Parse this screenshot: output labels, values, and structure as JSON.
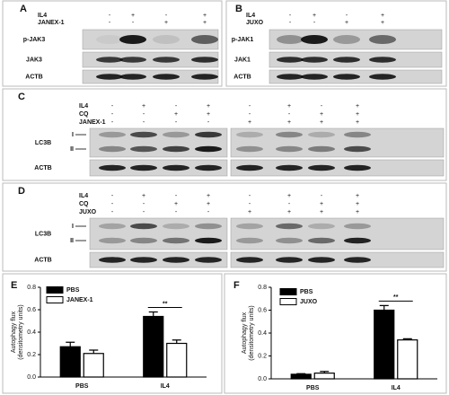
{
  "blot_panels": [
    {
      "label": "A",
      "conditions": [
        {
          "name": "IL4",
          "signs": [
            "-",
            "+",
            "-",
            "+"
          ]
        },
        {
          "name": "JANEX-1",
          "signs": [
            "-",
            "-",
            "+",
            "+"
          ]
        }
      ],
      "bands": [
        "p-JAK3",
        "JAK3",
        "ACTB"
      ]
    },
    {
      "label": "B",
      "conditions": [
        {
          "name": "IL4",
          "signs": [
            "-",
            "+",
            "-",
            "+"
          ]
        },
        {
          "name": "JUXO",
          "signs": [
            "-",
            "-",
            "+",
            "+"
          ]
        }
      ],
      "bands": [
        "p-JAK1",
        "JAK1",
        "ACTB"
      ]
    },
    {
      "label": "C",
      "conditions": [
        {
          "name": "IL4",
          "signs": [
            "-",
            "+",
            "-",
            "+",
            "-",
            "+",
            "-",
            "+"
          ]
        },
        {
          "name": "CQ",
          "signs": [
            "-",
            "-",
            "+",
            "+",
            "-",
            "-",
            "+",
            "+"
          ]
        },
        {
          "name": "JANEX-1",
          "signs": [
            "-",
            "-",
            "-",
            "-",
            "+",
            "+",
            "+",
            "+"
          ]
        }
      ],
      "bands": [
        "LC3B",
        "ACTB"
      ],
      "band_forms": [
        "I",
        "II"
      ]
    },
    {
      "label": "D",
      "conditions": [
        {
          "name": "IL4",
          "signs": [
            "-",
            "+",
            "-",
            "+",
            "-",
            "+",
            "-",
            "+"
          ]
        },
        {
          "name": "CQ",
          "signs": [
            "-",
            "-",
            "+",
            "+",
            "-",
            "-",
            "+",
            "+"
          ]
        },
        {
          "name": "JUXO",
          "signs": [
            "-",
            "-",
            "-",
            "-",
            "+",
            "+",
            "+",
            "+"
          ]
        }
      ],
      "bands": [
        "LC3B",
        "ACTB"
      ],
      "band_forms": [
        "I",
        "II"
      ]
    }
  ],
  "charts": [
    {
      "label": "E",
      "type": "bar",
      "ylabel": [
        "Autophagy flux",
        "(densitometry units)"
      ],
      "categories": [
        "PBS",
        "IL4"
      ],
      "series": [
        {
          "name": "PBS",
          "color": "#000000",
          "values": [
            0.27,
            0.54
          ],
          "errors": [
            0.04,
            0.04
          ]
        },
        {
          "name": "JANEX-1",
          "color": "#ffffff",
          "values": [
            0.21,
            0.3
          ],
          "errors": [
            0.03,
            0.03
          ]
        }
      ],
      "ylim": [
        0,
        0.8
      ],
      "yticks": [
        {
          "value": 0,
          "label": "0.0"
        },
        0.2,
        0.4,
        0.6,
        0.8
      ],
      "annotation": "**"
    },
    {
      "label": "F",
      "type": "bar",
      "ylabel": [
        "Autophagy flux",
        "(densitometry units)"
      ],
      "categories": [
        "PBS",
        "IL4"
      ],
      "series": [
        {
          "name": "PBS",
          "color": "#000000",
          "values": [
            0.04,
            0.6
          ],
          "errors": [
            0.005,
            0.04
          ]
        },
        {
          "name": "JUXO",
          "color": "#ffffff",
          "values": [
            0.05,
            0.34
          ],
          "errors": [
            0.015,
            0.01
          ]
        }
      ],
      "ylim": [
        0,
        0.8
      ],
      "yticks": [
        {
          "value": 0,
          "label": "0.0"
        },
        0.2,
        0.4,
        0.6,
        0.8
      ],
      "annotation": "**"
    }
  ]
}
